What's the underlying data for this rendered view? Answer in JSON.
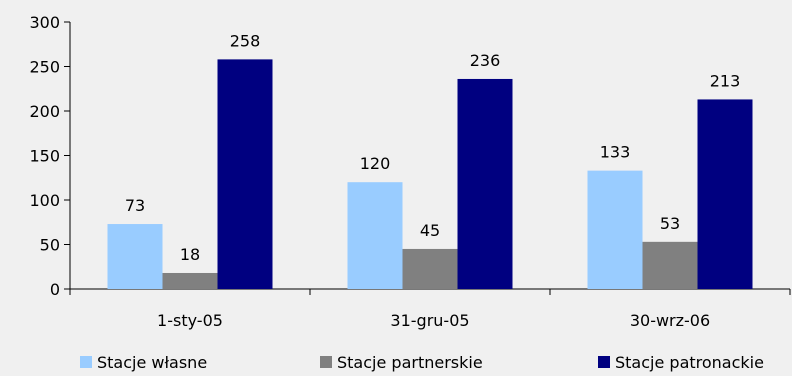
{
  "chart_data": {
    "type": "bar",
    "categories": [
      "1-sty-05",
      "31-gru-05",
      "30-wrz-06"
    ],
    "series": [
      {
        "name": "Stacje własne",
        "color": "#99ccff",
        "values": [
          73,
          120,
          133
        ]
      },
      {
        "name": "Stacje partnerskie",
        "color": "#808080",
        "values": [
          18,
          45,
          53
        ]
      },
      {
        "name": "Stacje patronackie",
        "color": "#000080",
        "values": [
          258,
          236,
          213
        ]
      }
    ],
    "ylim": [
      0,
      300
    ],
    "yticks": [
      0,
      50,
      100,
      150,
      200,
      250,
      300
    ],
    "grid": false,
    "legend_position": "bottom",
    "data_labels": true
  }
}
